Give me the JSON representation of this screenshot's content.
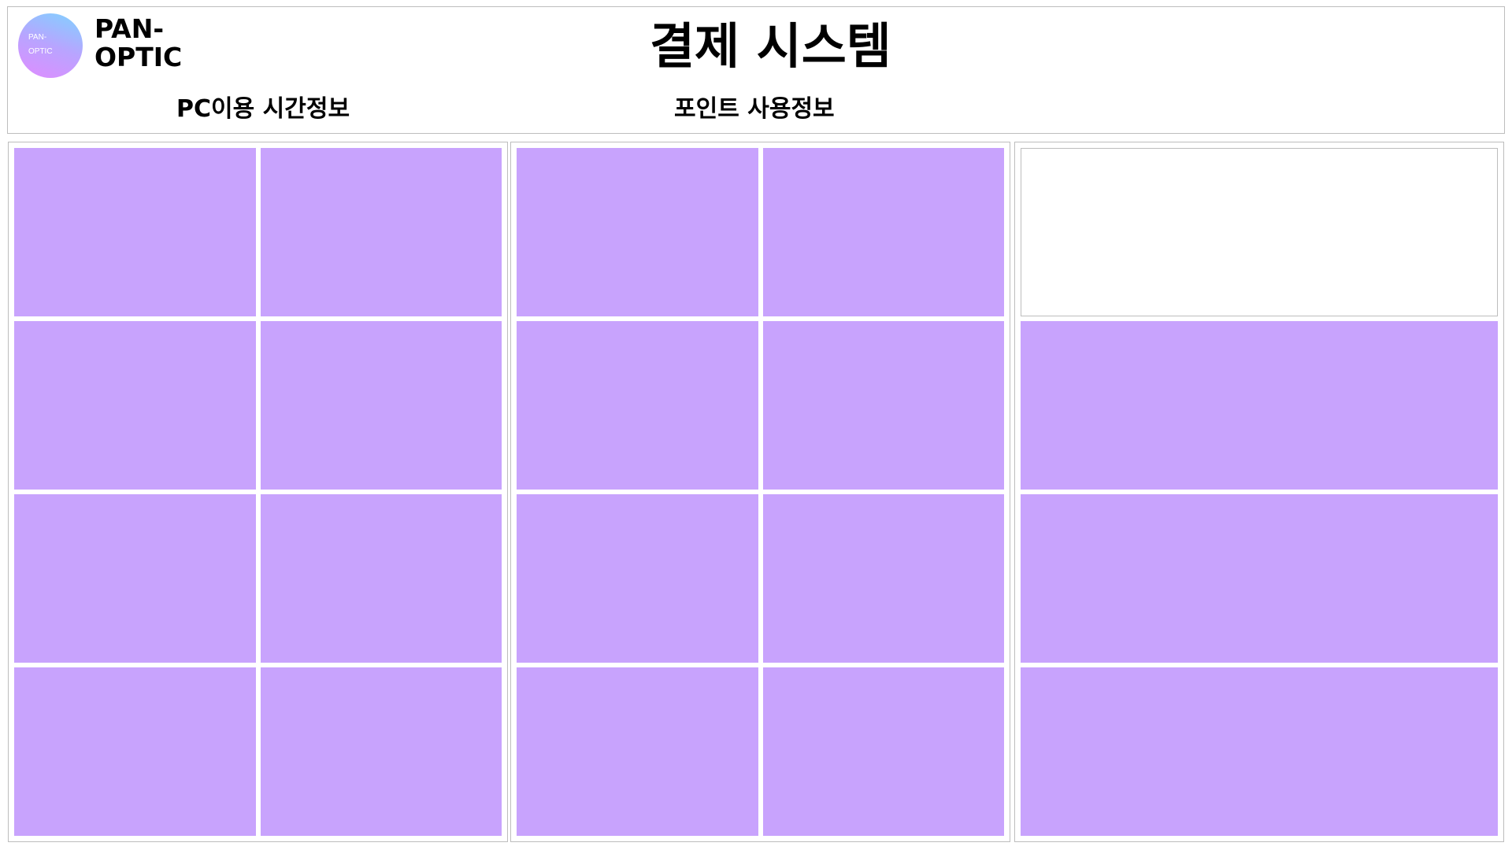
{
  "brand": {
    "logo_text": "PAN-\nOPTIC",
    "name": "PAN-\nOPTIC"
  },
  "header": {
    "title": "결제 시스템",
    "pc_usage_label": "PC이용 시간정보",
    "point_usage_label": "포인트 사용정보"
  },
  "colors": {
    "tile": "#c8a3fd",
    "border": "#bdbdbd",
    "logo_gradient": [
      "#7fd3ff",
      "#b9a4ff",
      "#e08cff"
    ]
  }
}
